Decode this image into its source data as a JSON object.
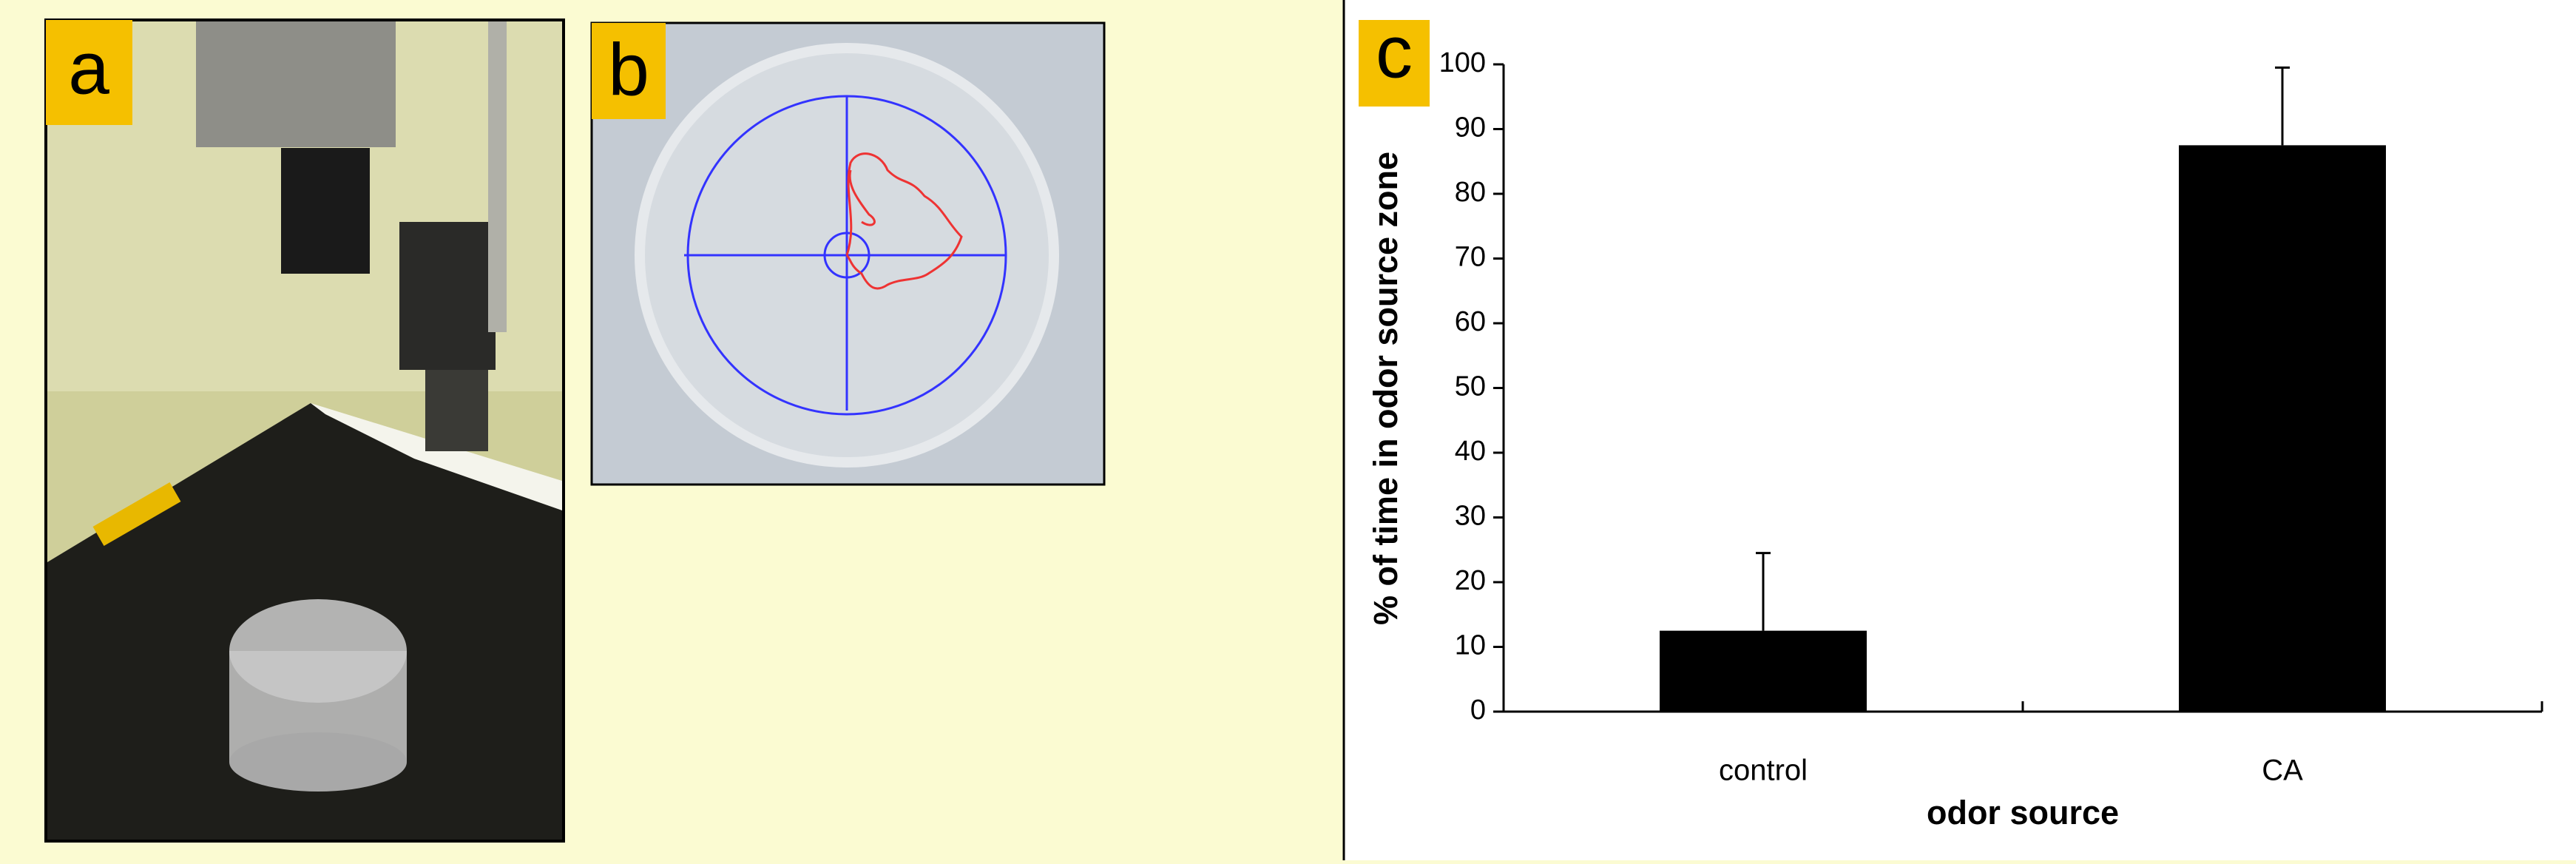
{
  "panel_labels": [
    "a",
    "b",
    "c"
  ],
  "chart_data": {
    "type": "bar",
    "xlabel": "odor source",
    "ylabel": "% of time in odor source zone",
    "categories": [
      "control",
      "CA"
    ],
    "values": [
      12.5,
      87.5
    ],
    "errors": [
      12,
      12
    ],
    "color": "#000000",
    "ylim": [
      0,
      100
    ],
    "yticks": [
      0,
      10,
      20,
      30,
      40,
      50,
      60,
      70,
      80,
      90,
      100
    ],
    "grid": false
  }
}
